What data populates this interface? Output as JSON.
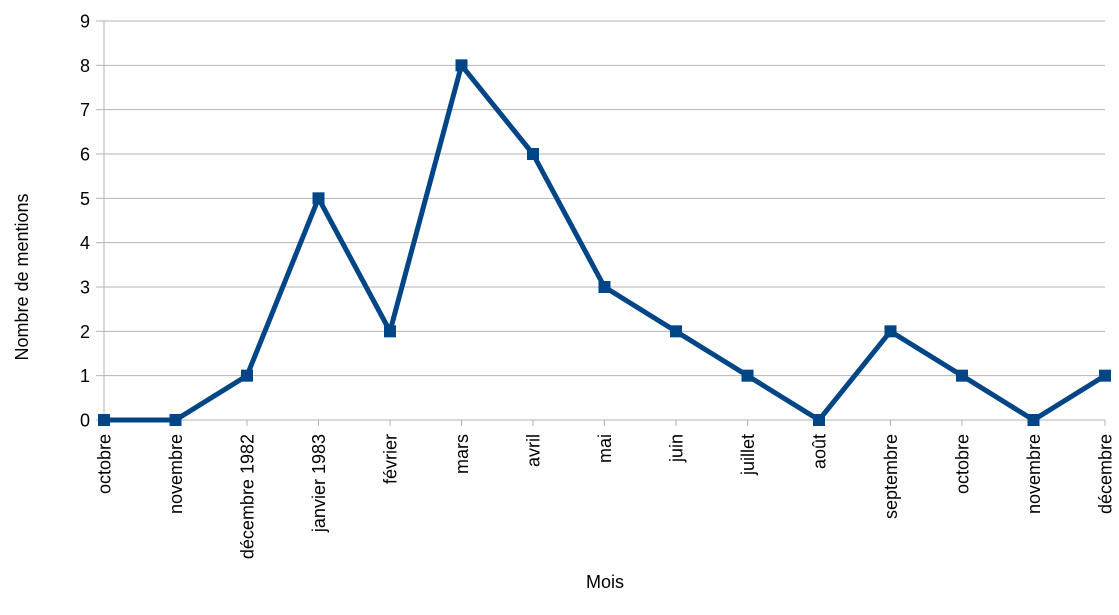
{
  "chart_data": {
    "type": "line",
    "title": "",
    "xlabel": "Mois",
    "ylabel": "Nombre de mentions",
    "categories": [
      "octobre",
      "novembre",
      "décembre 1982",
      "janvier 1983",
      "février",
      "mars",
      "avril",
      "mai",
      "juin",
      "juillet",
      "août",
      "septembre",
      "octobre",
      "novembre",
      "décembre"
    ],
    "series": [
      {
        "values": [
          0,
          0,
          1,
          5,
          2,
          8,
          6,
          3,
          2,
          1,
          0,
          2,
          1,
          0,
          1
        ]
      }
    ],
    "ylim": [
      0,
      9
    ],
    "yticks": [
      "0",
      "1",
      "2",
      "3",
      "4",
      "5",
      "6",
      "7",
      "8",
      "9"
    ],
    "grid": true,
    "legend": "none",
    "colors": {
      "line": "#004586",
      "grid": "#b3b3b3",
      "axis": "#b3b3b3"
    }
  }
}
